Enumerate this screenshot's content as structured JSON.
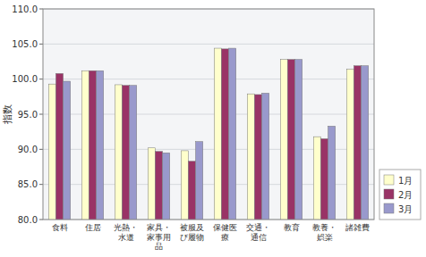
{
  "chart_data": {
    "type": "bar",
    "y_label": "指数",
    "categories": [
      "食料",
      "住居",
      "光熱・\n水道",
      "家具・\n家事用\n品",
      "被服及\nび履物",
      "保健医\n療",
      "交通・\n通信",
      "教育",
      "教養・\n娯楽",
      "諸雑費"
    ],
    "series": [
      {
        "name": "1月",
        "color": "#FFFFCC",
        "values": [
          99.3,
          101.2,
          99.2,
          90.2,
          89.8,
          104.4,
          97.9,
          102.8,
          91.8,
          101.4
        ]
      },
      {
        "name": "2月",
        "color": "#993366",
        "values": [
          100.8,
          101.2,
          99.1,
          89.7,
          88.3,
          104.3,
          97.8,
          102.8,
          91.5,
          101.9
        ]
      },
      {
        "name": "3月",
        "color": "#9999CC",
        "values": [
          99.7,
          101.2,
          99.1,
          89.5,
          91.1,
          104.4,
          98.0,
          102.8,
          93.3,
          101.9
        ]
      }
    ],
    "ylim": [
      80.0,
      110.0
    ],
    "yticks": [
      {
        "value": 80.0,
        "label": "80.0"
      },
      {
        "value": 85.0,
        "label": "85.0"
      },
      {
        "value": 90.0,
        "label": "90.0"
      },
      {
        "value": 95.0,
        "label": "95.0"
      },
      {
        "value": 100.0,
        "label": "100.0"
      },
      {
        "value": 105.0,
        "label": "105.0"
      },
      {
        "value": 110.0,
        "label": "110.0"
      }
    ],
    "grid": true,
    "legend": "lower right"
  }
}
